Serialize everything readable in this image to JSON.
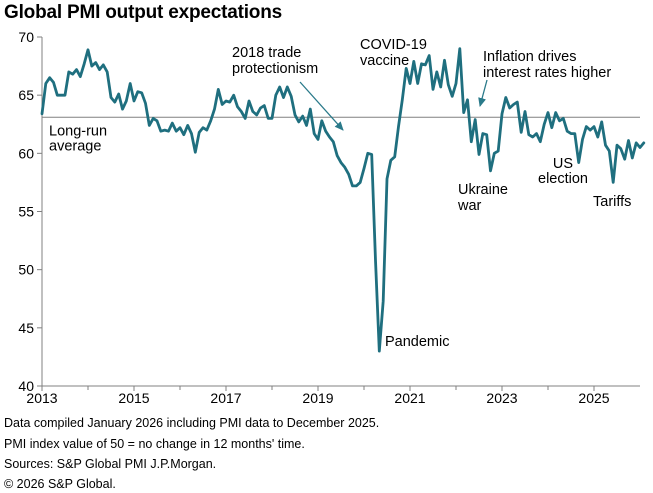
{
  "title": "Global PMI output expectations",
  "footer": {
    "line1": "Data compiled January 2026 including PMI data to December 2025.",
    "line2": "PMI index value of 50 = no change in 12 months' time.",
    "line3": "Sources: S&P Global PMI J.P.Morgan.",
    "line4": "© 2026 S&P Global."
  },
  "colors": {
    "series": "#1f6f7f",
    "reference_line": "#808080",
    "arrow": "#2a7a8a"
  },
  "chart_data": {
    "type": "line",
    "title": "Global PMI output expectations",
    "xlabel": "",
    "ylabel": "",
    "ylim": [
      40,
      70
    ],
    "xlim": [
      2013.0,
      2026.0
    ],
    "yticks": [
      40,
      45,
      50,
      55,
      60,
      65,
      70
    ],
    "xticks": [
      2013,
      2015,
      2017,
      2019,
      2021,
      2023,
      2025
    ],
    "grid": false,
    "reference_line": {
      "label": "Long-run average",
      "label_lines": [
        "Long-run",
        "average"
      ],
      "value": 63.1
    },
    "annotations": [
      {
        "id": "trade",
        "lines": [
          "2018 trade",
          "protectionism"
        ]
      },
      {
        "id": "covid",
        "lines": [
          "COVID-19",
          "vaccine"
        ]
      },
      {
        "id": "inflation",
        "lines": [
          "Inflation drives",
          "interest rates higher"
        ]
      },
      {
        "id": "pandemic",
        "lines": [
          "Pandemic"
        ]
      },
      {
        "id": "ukraine",
        "lines": [
          "Ukraine",
          "war"
        ]
      },
      {
        "id": "us_election",
        "lines": [
          "US",
          "election"
        ]
      },
      {
        "id": "tariffs",
        "lines": [
          "Tariffs"
        ]
      }
    ],
    "series": [
      {
        "start": "2013-01",
        "step_months": 1,
        "values": [
          63.4,
          66.0,
          66.5,
          66.1,
          65.0,
          65.0,
          65.0,
          67.0,
          66.8,
          67.2,
          66.6,
          67.7,
          68.9,
          67.5,
          67.8,
          67.2,
          67.6,
          67.0,
          64.8,
          64.4,
          65.1,
          63.8,
          64.5,
          66.0,
          64.5,
          65.3,
          65.2,
          64.3,
          62.4,
          63.0,
          62.8,
          61.9,
          62.0,
          61.9,
          62.6,
          61.9,
          62.2,
          61.6,
          62.4,
          61.7,
          60.1,
          61.8,
          62.2,
          62.0,
          62.8,
          63.8,
          65.5,
          64.2,
          64.5,
          64.4,
          65.0,
          64.0,
          63.6,
          63.0,
          64.5,
          63.6,
          63.3,
          63.9,
          64.1,
          63.0,
          63.0,
          65.0,
          65.7,
          64.8,
          65.7,
          64.9,
          63.3,
          62.7,
          63.2,
          62.4,
          63.8,
          61.7,
          61.2,
          62.8,
          61.9,
          61.4,
          61.0,
          59.8,
          59.2,
          58.8,
          58.2,
          57.2,
          57.2,
          57.5,
          58.7,
          60.0,
          59.9,
          50.8,
          43.0,
          47.3,
          57.8,
          59.4,
          59.7,
          62.3,
          64.6,
          67.3,
          66.0,
          67.9,
          66.0,
          67.7,
          67.6,
          68.4,
          65.5,
          67.0,
          65.7,
          68.0,
          65.9,
          64.9,
          66.0,
          69.0,
          63.5,
          64.6,
          61.0,
          62.9,
          59.9,
          61.7,
          61.6,
          58.5,
          60.0,
          60.2,
          63.4,
          64.8,
          63.9,
          64.2,
          64.4,
          61.8,
          63.6,
          61.6,
          61.4,
          61.7,
          61.0,
          62.5,
          63.5,
          62.2,
          63.5,
          62.8,
          63.0,
          61.9,
          61.7,
          61.7,
          59.2,
          61.2,
          62.3,
          62.0,
          62.3,
          61.4,
          62.7,
          60.7,
          60.2,
          57.5,
          60.7,
          60.4,
          59.5,
          61.1,
          59.6,
          60.9,
          60.5,
          60.9
        ]
      }
    ]
  }
}
